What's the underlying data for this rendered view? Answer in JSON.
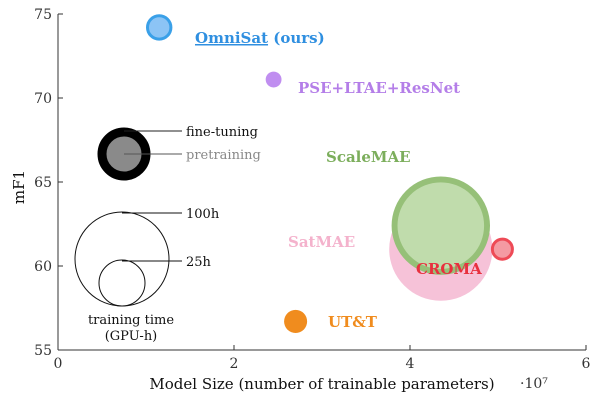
{
  "chart_data": {
    "type": "scatter",
    "title": "",
    "xlabel": "Model Size (number of trainable parameters)",
    "ylabel": "mF1",
    "x_multiplier": "·10⁷",
    "xlim": [
      0,
      6
    ],
    "ylim": [
      55,
      75
    ],
    "x_ticks": [
      0,
      2,
      4,
      6
    ],
    "y_ticks": [
      55,
      60,
      65,
      70,
      75
    ],
    "grid": false,
    "points": [
      {
        "name": "OmniSat",
        "suffix": "(ours)",
        "x": 1.15,
        "y": 74.2,
        "radius_ratio": 0.55,
        "color": "#3aa0e8",
        "fill": "#8cc4f5",
        "underline": true
      },
      {
        "name": "PSE+LTAE+ResNet",
        "x": 2.45,
        "y": 71.1,
        "radius_ratio": 0.33,
        "color": "#c08ef0",
        "fill": "#c08ef0"
      },
      {
        "name": "ScaleMAE",
        "x": 4.35,
        "y": 62.4,
        "radius_ratio": 2.05,
        "color": "#96c078",
        "fill": "#c0dcac"
      },
      {
        "name": "SatMAE",
        "x": 4.35,
        "y": 61.0,
        "radius_ratio": 2.15,
        "color": "#f6c2d8",
        "fill": "#f6c2d8"
      },
      {
        "name": "CROMA",
        "x": 5.05,
        "y": 61.0,
        "radius_ratio": 0.48,
        "color": "#ee4a56",
        "fill": "#f49aa2"
      },
      {
        "name": "UT&T",
        "x": 2.7,
        "y": 56.7,
        "radius_ratio": 0.48,
        "color": "#f08c1e",
        "fill": "#f08c1e"
      }
    ],
    "legend": {
      "fine_tuning": "fine-tuning",
      "pretraining": "pretraining",
      "size_100h": "100h",
      "size_25h": "25h",
      "caption_line1": "training time",
      "caption_line2": "(GPU-h)"
    }
  }
}
